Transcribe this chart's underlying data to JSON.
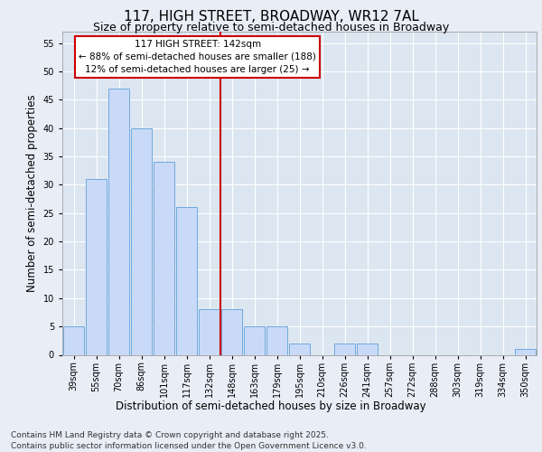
{
  "title_line1": "117, HIGH STREET, BROADWAY, WR12 7AL",
  "title_line2": "Size of property relative to semi-detached houses in Broadway",
  "xlabel": "Distribution of semi-detached houses by size in Broadway",
  "ylabel": "Number of semi-detached properties",
  "categories": [
    "39sqm",
    "55sqm",
    "70sqm",
    "86sqm",
    "101sqm",
    "117sqm",
    "132sqm",
    "148sqm",
    "163sqm",
    "179sqm",
    "195sqm",
    "210sqm",
    "226sqm",
    "241sqm",
    "257sqm",
    "272sqm",
    "288sqm",
    "303sqm",
    "319sqm",
    "334sqm",
    "350sqm"
  ],
  "values": [
    5,
    31,
    47,
    40,
    34,
    26,
    8,
    8,
    5,
    5,
    2,
    0,
    2,
    2,
    0,
    0,
    0,
    0,
    0,
    0,
    1
  ],
  "bar_color": "#c9daf8",
  "bar_edge_color": "#6fa8dc",
  "red_line_index": 7,
  "annotation_line1": "117 HIGH STREET: 142sqm",
  "annotation_line2": "← 88% of semi-detached houses are smaller (188)",
  "annotation_line3": "12% of semi-detached houses are larger (25) →",
  "annotation_box_color": "#ffffff",
  "annotation_box_edge_color": "#cc0000",
  "red_line_color": "#cc0000",
  "ylim": [
    0,
    57
  ],
  "yticks": [
    0,
    5,
    10,
    15,
    20,
    25,
    30,
    35,
    40,
    45,
    50,
    55
  ],
  "footnote_line1": "Contains HM Land Registry data © Crown copyright and database right 2025.",
  "footnote_line2": "Contains public sector information licensed under the Open Government Licence v3.0.",
  "bg_color": "#e8edf6",
  "plot_bg_color": "#dce6f1",
  "grid_color": "#ffffff",
  "title_fontsize": 11,
  "subtitle_fontsize": 9,
  "label_fontsize": 8.5,
  "tick_fontsize": 7,
  "footnote_fontsize": 6.5,
  "annotation_fontsize": 7.5
}
